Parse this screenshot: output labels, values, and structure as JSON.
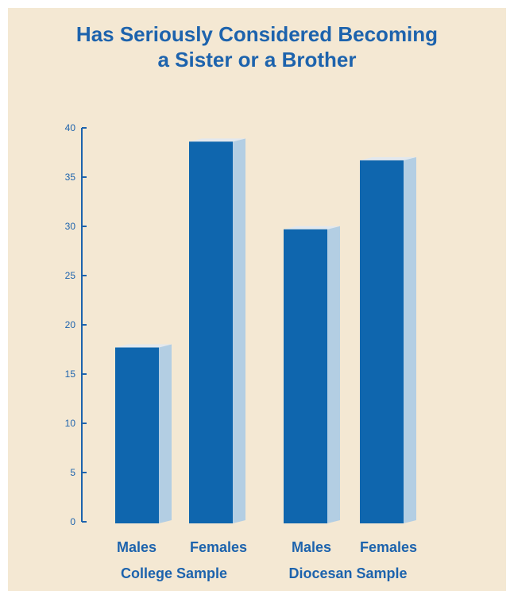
{
  "chart_data": {
    "type": "bar",
    "title_lines": [
      "Has Seriously Considered Becoming",
      "a Sister or a Brother"
    ],
    "xlabel": "",
    "ylabel": "",
    "ylim": [
      0,
      40
    ],
    "yticks": [
      0,
      5,
      10,
      15,
      20,
      25,
      30,
      35,
      40
    ],
    "grid": false,
    "categories": [
      "Males",
      "Females",
      "Males",
      "Females"
    ],
    "values": [
      17.7,
      38.6,
      29.7,
      36.7
    ],
    "groups": [
      {
        "label": "College Sample",
        "categories": [
          "Males",
          "Females"
        ]
      },
      {
        "label": "Diocesan Sample",
        "categories": [
          "Males",
          "Females"
        ]
      }
    ],
    "colors": {
      "bar_front": "#0f66ae",
      "bar_side": "#b3cee3",
      "bar_top": "#e2e8ee",
      "axis": "#1d63ad",
      "text": "#1d63ad",
      "background": "#f4e8d3"
    }
  }
}
